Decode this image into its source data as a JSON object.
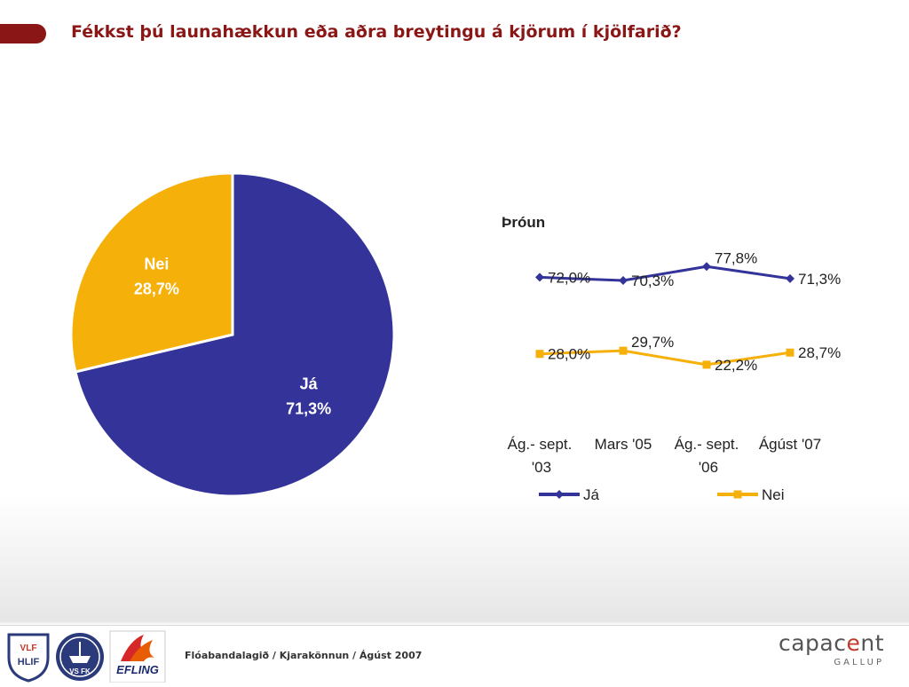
{
  "slide": {
    "title": "Fékkst þú launahækkun eða aðra breytingu á kjörum í kjölfarið?"
  },
  "chart_data": [
    {
      "type": "pie",
      "categories": [
        "Já",
        "Nei"
      ],
      "values": [
        71.3,
        28.7
      ],
      "value_labels": [
        "71,3%",
        "28,7%"
      ],
      "colors": [
        "#333399",
        "#f5b00a"
      ],
      "start_angle_deg": 0,
      "direction": "clockwise"
    },
    {
      "type": "line",
      "title": "Þróun",
      "categories": [
        [
          "Ág.- sept.",
          "'03"
        ],
        [
          "Mars '05"
        ],
        [
          "Ág.- sept.",
          "'06"
        ],
        [
          "Ágúst '07"
        ]
      ],
      "series": [
        {
          "name": "Já",
          "values": [
            72.0,
            70.3,
            77.8,
            71.3
          ],
          "labels": [
            "72,0%",
            "70,3%",
            "77,8%",
            "71,3%"
          ],
          "color": "#333399",
          "marker": "diamond"
        },
        {
          "name": "Nei",
          "values": [
            28.0,
            29.7,
            22.2,
            28.7
          ],
          "labels": [
            "28,0%",
            "29,7%",
            "22,2%",
            "28,7%"
          ],
          "color": "#f5b00a",
          "marker": "square"
        }
      ],
      "legend_position": "bottom",
      "grid": false
    }
  ],
  "footer": {
    "text": "Flóabandalagið  / Kjarakönnun / Ágúst 2007",
    "logos": [
      {
        "icon": "vlf-hlif-shield-logo",
        "text": "VLF HLIF"
      },
      {
        "icon": "vsfk-ship-logo",
        "text": "VS FK"
      },
      {
        "icon": "efling-logo",
        "text": "EFLING"
      }
    ],
    "brand": {
      "main": "capacent",
      "sub": "GALLUP"
    }
  }
}
